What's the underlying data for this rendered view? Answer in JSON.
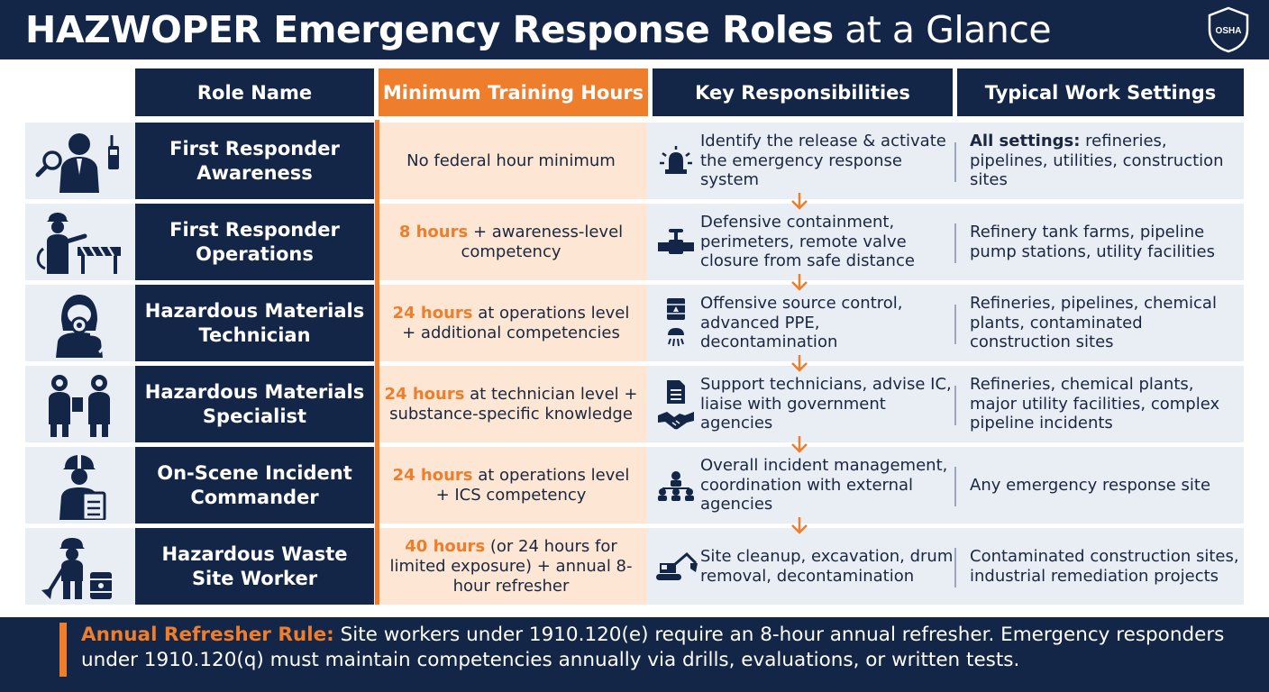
{
  "header": {
    "title_bold": "HAZWOPER Emergency Response Roles",
    "title_light": "at a Glance",
    "badge": "OSHA"
  },
  "columns": [
    "Role Name",
    "Minimum Training Hours",
    "Key Responsibilities",
    "Typical Work Settings"
  ],
  "colors": {
    "navy": "#132647",
    "orange": "#ee7d2c",
    "peach": "#fde6d3",
    "row_bg": "#e9edf4"
  },
  "rows": [
    {
      "icon": "awareness-icon",
      "resp_icons": [
        "alarm-beacon-icon"
      ],
      "role": "First Responder Awareness",
      "training_hours": "",
      "training_rest": "No federal hour minimum",
      "responsibilities": "Identify the release & activate the emergency response system",
      "settings_lead": "All settings:",
      "settings_rest": " refineries, pipelines, utilities, construction sites"
    },
    {
      "icon": "firefighter-barricade-icon",
      "resp_icons": [
        "valve-icon"
      ],
      "role": "First Responder Operations",
      "training_hours": "8 hours",
      "training_rest": " + awareness-level competency",
      "responsibilities": "Defensive containment, perimeters, remote valve closure from safe distance",
      "settings_lead": "",
      "settings_rest": "Refinery tank farms, pipeline pump stations, utility facilities"
    },
    {
      "icon": "gas-mask-technician-icon",
      "resp_icons": [
        "hazmat-drum-icon",
        "shower-icon"
      ],
      "role": "Hazardous Materials Technician",
      "training_hours": "24 hours",
      "training_rest": " at operations level + additional competencies",
      "responsibilities": "Offensive source control, advanced PPE, decontamination",
      "settings_lead": "",
      "settings_rest": "Refineries, pipelines, chemical plants, contaminated construction sites"
    },
    {
      "icon": "hazmat-specialists-icon",
      "resp_icons": [
        "document-icon",
        "handshake-icon"
      ],
      "role": "Hazardous Materials Specialist",
      "training_hours": "24 hours",
      "training_rest": " at technician level + substance-specific knowledge",
      "responsibilities": "Support technicians, advise IC, liaise with government agencies",
      "settings_lead": "",
      "settings_rest": "Refineries, chemical plants, major utility facilities, complex pipeline incidents"
    },
    {
      "icon": "commander-clipboard-icon",
      "resp_icons": [
        "org-chart-icon"
      ],
      "role": "On-Scene Incident Commander",
      "training_hours": "24 hours",
      "training_rest": " at operations level + ICS competency",
      "responsibilities": "Overall incident management, coordination with external agencies",
      "settings_lead": "",
      "settings_rest": "Any emergency response site"
    },
    {
      "icon": "site-worker-drum-icon",
      "resp_icons": [
        "excavator-icon"
      ],
      "role": "Hazardous Waste Site Worker",
      "training_hours": "40 hours",
      "training_rest": " (or 24 hours for limited exposure) + annual 8-hour refresher",
      "responsibilities": "Site cleanup, excavation, drum removal, decontamination",
      "settings_lead": "",
      "settings_rest": "Contaminated construction sites, industrial remediation projects"
    }
  ],
  "footer": {
    "lead": "Annual Refresher Rule:",
    "text": " Site workers under 1910.120(e) require an 8-hour annual refresher. Emergency responders under 1910.120(q) must maintain competencies annually via drills, evaluations, or written tests."
  }
}
